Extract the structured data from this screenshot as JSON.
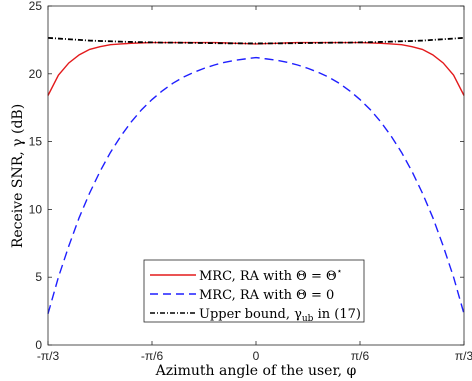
{
  "chart_data": {
    "type": "line",
    "xlabel": "Azimuth angle of the user, φ",
    "ylabel": "Receive SNR, γ (dB)",
    "x_unit": "rad",
    "xlim": [
      -1.0471976,
      1.0471976
    ],
    "ylim": [
      0,
      25
    ],
    "grid": false,
    "legend_position": "bottom-center",
    "x_tick_labels": [
      "-π/3",
      "-π/6",
      "0",
      "π/6",
      "π/3"
    ],
    "x_ticks": [
      -1.0471976,
      -0.5235988,
      0,
      0.5235988,
      1.0471976
    ],
    "y_ticks": [
      0,
      5,
      10,
      15,
      20,
      25
    ],
    "y_tick_labels": [
      "0",
      "5",
      "10",
      "15",
      "20",
      "25"
    ],
    "x": [
      -1.0472,
      -0.9948,
      -0.9425,
      -0.8901,
      -0.8378,
      -0.7854,
      -0.733,
      -0.6807,
      -0.6283,
      -0.576,
      -0.5236,
      -0.4712,
      -0.4189,
      -0.3665,
      -0.3142,
      -0.2618,
      -0.2094,
      -0.1571,
      -0.1047,
      -0.0524,
      0.0,
      0.0524,
      0.1047,
      0.1571,
      0.2094,
      0.2618,
      0.3142,
      0.3665,
      0.4189,
      0.4712,
      0.5236,
      0.576,
      0.6283,
      0.6807,
      0.733,
      0.7854,
      0.8378,
      0.8901,
      0.9425,
      0.9948,
      1.0472
    ],
    "series": [
      {
        "name": "MRC, RA with Θ = Θ*",
        "color": "#e31a1c",
        "style": "solid",
        "values": [
          18.4,
          19.9,
          20.8,
          21.4,
          21.8,
          22.0,
          22.15,
          22.2,
          22.25,
          22.28,
          22.3,
          22.3,
          22.3,
          22.3,
          22.3,
          22.3,
          22.3,
          22.28,
          22.25,
          22.23,
          22.2,
          22.23,
          22.25,
          22.28,
          22.3,
          22.3,
          22.3,
          22.3,
          22.3,
          22.3,
          22.3,
          22.28,
          22.25,
          22.2,
          22.15,
          22.0,
          21.8,
          21.4,
          20.8,
          19.9,
          18.4
        ]
      },
      {
        "name": "MRC, RA with Θ = 0",
        "color": "#1f1fff",
        "style": "dashed",
        "values": [
          2.3,
          5.0,
          7.3,
          9.4,
          11.2,
          12.8,
          14.2,
          15.4,
          16.45,
          17.35,
          18.1,
          18.75,
          19.3,
          19.75,
          20.1,
          20.4,
          20.65,
          20.85,
          21.0,
          21.1,
          21.2,
          21.1,
          21.0,
          20.85,
          20.65,
          20.4,
          20.1,
          19.75,
          19.3,
          18.75,
          18.1,
          17.35,
          16.45,
          15.4,
          14.2,
          12.8,
          11.2,
          9.4,
          7.3,
          5.0,
          2.3
        ]
      },
      {
        "name": "Upper bound, γ_ub in (17)",
        "color": "#000000",
        "style": "dash-dot",
        "values": [
          22.65,
          22.6,
          22.55,
          22.5,
          22.45,
          22.42,
          22.4,
          22.37,
          22.35,
          22.33,
          22.32,
          22.3,
          22.3,
          22.29,
          22.28,
          22.27,
          22.26,
          22.25,
          22.25,
          22.24,
          22.24,
          22.24,
          22.25,
          22.25,
          22.26,
          22.27,
          22.28,
          22.29,
          22.3,
          22.3,
          22.32,
          22.33,
          22.35,
          22.37,
          22.4,
          22.42,
          22.45,
          22.5,
          22.55,
          22.6,
          22.65
        ]
      }
    ]
  },
  "legend": {
    "entry1": "MRC, RA with Θ = Θ",
    "entry1_sup": "⋆",
    "entry2": "MRC, RA with Θ = 0",
    "entry3_prefix": "Upper bound, γ",
    "entry3_sub": "ub",
    "entry3_suffix": " in (17)"
  }
}
